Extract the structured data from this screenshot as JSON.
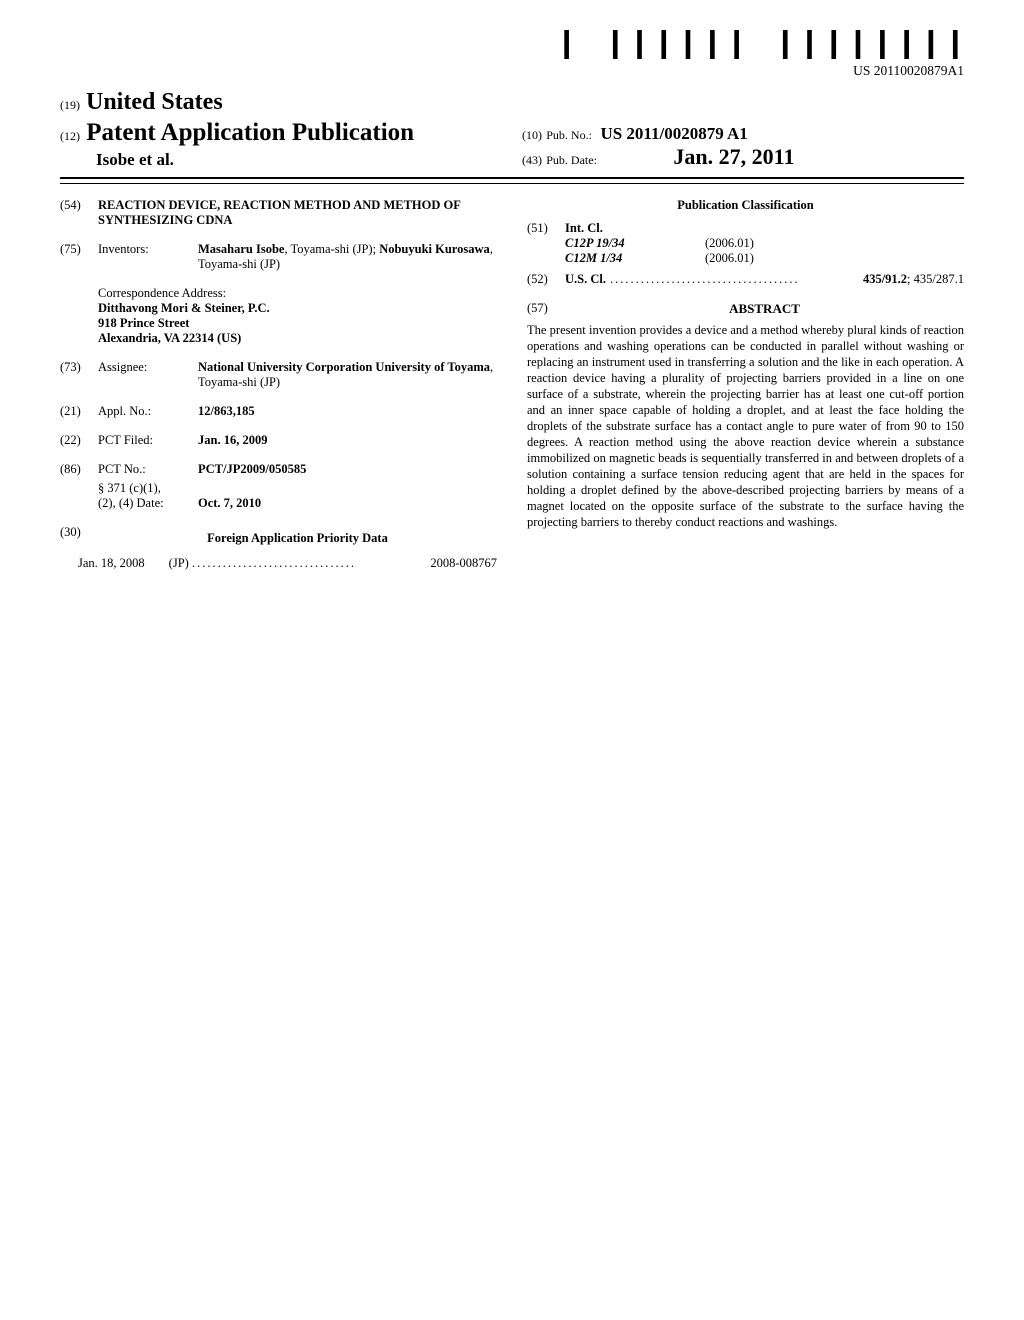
{
  "barcode_caption": "US 20110020879A1",
  "header": {
    "country_num": "(19)",
    "country": "United States",
    "doc_num": "(12)",
    "doc_type": "Patent Application Publication",
    "authors": "Isobe et al.",
    "pubno_num": "(10)",
    "pubno_label": "Pub. No.:",
    "pubno": "US 2011/0020879 A1",
    "pubdate_num": "(43)",
    "pubdate_label": "Pub. Date:",
    "pubdate": "Jan. 27, 2011"
  },
  "left": {
    "title_num": "(54)",
    "title": "REACTION DEVICE, REACTION METHOD AND METHOD OF SYNTHESIZING CDNA",
    "inventors_num": "(75)",
    "inventors_label": "Inventors:",
    "inventors_value": "<b>Masaharu Isobe</b>, Toyama-shi (JP); <b>Nobuyuki Kurosawa</b>, Toyama-shi (JP)",
    "corr_label": "Correspondence Address:",
    "corr_lines": [
      "Ditthavong Mori & Steiner, P.C.",
      "918 Prince Street",
      "Alexandria, VA 22314 (US)"
    ],
    "assignee_num": "(73)",
    "assignee_label": "Assignee:",
    "assignee_value": "<b>National University Corporation University of Toyama</b>, Toyama-shi (JP)",
    "applno_num": "(21)",
    "applno_label": "Appl. No.:",
    "applno_value": "12/863,185",
    "pctfiled_num": "(22)",
    "pctfiled_label": "PCT Filed:",
    "pctfiled_value": "Jan. 16, 2009",
    "pctno_num": "(86)",
    "pctno_label": "PCT No.:",
    "pctno_value": "PCT/JP2009/050585",
    "s371_label": "§ 371 (c)(1),",
    "s371_label2": "(2), (4) Date:",
    "s371_value": "Oct. 7, 2010",
    "foreign_num": "(30)",
    "foreign_header": "Foreign Application Priority Data",
    "foreign_date": "Jan. 18, 2008",
    "foreign_cc": "(JP)",
    "foreign_app": "2008-008767"
  },
  "right": {
    "pubclass_header": "Publication Classification",
    "intcl_num": "(51)",
    "intcl_label": "Int. Cl.",
    "intcl": [
      {
        "code": "C12P 19/34",
        "year": "(2006.01)"
      },
      {
        "code": "C12M 1/34",
        "year": "(2006.01)"
      }
    ],
    "uscl_num": "(52)",
    "uscl_label": "U.S. Cl.",
    "uscl_value": "<b>435/91.2</b>; 435/287.1",
    "abstract_num": "(57)",
    "abstract_header": "ABSTRACT",
    "abstract": "The present invention provides a device and a method whereby plural kinds of reaction operations and washing operations can be conducted in parallel without washing or replacing an instrument used in transferring a solution and the like in each operation. A reaction device having a plurality of projecting barriers provided in a line on one surface of a substrate, wherein the projecting barrier has at least one cut-off portion and an inner space capable of holding a droplet, and at least the face holding the droplets of the substrate surface has a contact angle to pure water of from 90 to 150 degrees. A reaction method using the above reaction device wherein a substance immobilized on magnetic beads is sequentially transferred in and between droplets of a solution containing a surface tension reducing agent that are held in the spaces for holding a droplet defined by the above-described projecting barriers by means of a magnet located on the opposite surface of the substrate to the surface having the projecting barriers to thereby conduct reactions and washings."
  }
}
